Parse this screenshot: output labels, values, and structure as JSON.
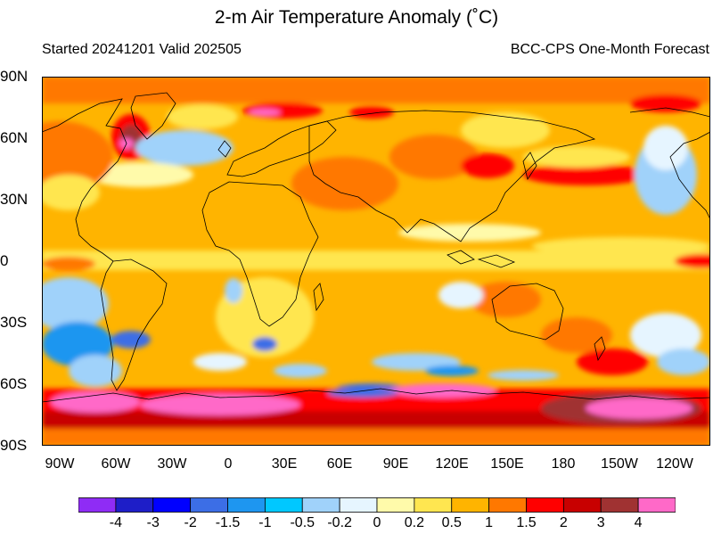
{
  "title": "2-m Air Temperature Anomaly (˚C)",
  "subtitle_left": "Started 20241201  Valid 202505",
  "subtitle_right": "BCC-CPS One-Month Forecast",
  "lat_labels": [
    "90N",
    "60N",
    "30N",
    "0",
    "30S",
    "60S",
    "90S"
  ],
  "lon_labels": [
    "90W",
    "60W",
    "30W",
    "0",
    "30E",
    "60E",
    "90E",
    "120E",
    "150E",
    "180",
    "150W",
    "120W"
  ],
  "colorbar": {
    "labels": [
      "-4",
      "-3",
      "-2",
      "-1.5",
      "-1",
      "-0.5",
      "-0.2",
      "0",
      "0.2",
      "0.5",
      "1",
      "1.5",
      "2",
      "3",
      "4"
    ],
    "colors": [
      "#8f2cf5",
      "#1e1ec8",
      "#0000ff",
      "#3c6ee6",
      "#1e96f0",
      "#00c8ff",
      "#a0d2fa",
      "#e6f5ff",
      "#fffaaa",
      "#ffe650",
      "#ffb400",
      "#ff7800",
      "#ff0000",
      "#c80000",
      "#a03232",
      "#ff69c8"
    ]
  }
}
